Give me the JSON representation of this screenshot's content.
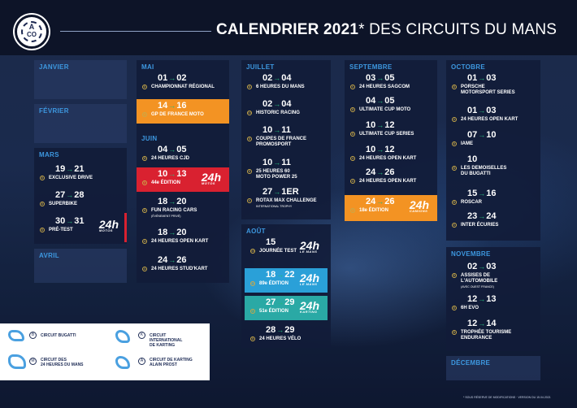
{
  "header": {
    "logo_letters": "A",
    "logo_sub": "CO",
    "title_bold": "CALENDRIER 2021",
    "title_rest": "* DES CIRCUITS DU MANS"
  },
  "months": {
    "janvier": "JANVIER",
    "fevrier": "FÉVRIER",
    "mars": "MARS",
    "avril": "AVRIL",
    "mai": "MAI",
    "juin": "JUIN",
    "juillet": "JUILLET",
    "aout": "AOÛT",
    "septembre": "SEPTEMBRE",
    "octobre": "OCTOBRE",
    "novembre": "NOVEMBRE",
    "decembre": "DÉCEMBRE"
  },
  "events": {
    "mars": [
      {
        "d1": "19",
        "d2": "21",
        "tag": "B",
        "name": "EXCLUSIVE DRIVE"
      },
      {
        "d1": "27",
        "d2": "28",
        "tag": "B",
        "name": "SUPERBIKE"
      },
      {
        "d1": "30",
        "d2": "31",
        "tag": "B",
        "name": "PRÉ-TEST",
        "logo": "24h",
        "logo_sub": "MOTOS"
      }
    ],
    "mai": [
      {
        "d1": "01",
        "d2": "02",
        "tag": "B",
        "name": "CHAMPIONNAT RÉGIONAL"
      },
      {
        "d1": "14",
        "d2": "16",
        "tag": "B",
        "name": "GP DE FRANCE MOTO"
      }
    ],
    "juin": [
      {
        "d1": "04",
        "d2": "05",
        "tag": "B",
        "name": "24 HEURES CJD"
      },
      {
        "d1": "10",
        "d2": "13",
        "tag": "B",
        "name": "44e ÉDITION",
        "logo": "24h",
        "logo_sub": "MOTOS"
      },
      {
        "d1": "18",
        "d2": "20",
        "tag": "B",
        "name": "FUN RACING CARS",
        "sub": "(ÉVÉNEMENT PRIVÉ)"
      },
      {
        "d1": "18",
        "d2": "20",
        "tag": "A",
        "name": "24 HEURES OPEN KART"
      },
      {
        "d1": "24",
        "d2": "26",
        "tag": "A",
        "name": "24 HEURES STUD'KART"
      }
    ],
    "juillet": [
      {
        "d1": "02",
        "d2": "04",
        "tag": "B",
        "name": "6 HEURES DU MANS"
      },
      {
        "d1": "02",
        "d2": "04",
        "tag": "M",
        "name": "HISTORIC RACING"
      },
      {
        "d1": "10",
        "d2": "11",
        "tag": "B",
        "name": "COUPES DE FRANCE",
        "name2": "PROMOSPORT"
      },
      {
        "d1": "10",
        "d2": "11",
        "tag": "B",
        "name": "25 HEURES 60",
        "name2": "MOTO POWER 25"
      },
      {
        "d1": "27",
        "d2": "1ER",
        "tag": "K",
        "name": "ROTAX MAX CHALLENGE",
        "sub": "INTERNATIONAL TROPHY"
      }
    ],
    "aout": [
      {
        "d1": "15",
        "tag": "M",
        "name": "JOURNÉE TEST",
        "logo": "24h",
        "logo_sub": "LE MANS"
      },
      {
        "d1": "18",
        "d2": "22",
        "tag": "M",
        "name": "89e ÉDITION",
        "logo": "24h",
        "logo_sub": "LE MANS"
      },
      {
        "d1": "27",
        "d2": "29",
        "tag": "K",
        "name": "51e ÉDITION",
        "logo": "24h",
        "logo_sub": "KARTING"
      },
      {
        "d1": "28",
        "d2": "29",
        "tag": "B",
        "name": "24 HEURES VÉLO"
      }
    ],
    "septembre": [
      {
        "d1": "03",
        "d2": "05",
        "tag": "K",
        "name": "24 HEURES SAGCOM"
      },
      {
        "d1": "04",
        "d2": "05",
        "tag": "B",
        "name": "ULTIMATE CUP MOTO"
      },
      {
        "d1": "10",
        "d2": "12",
        "tag": "B",
        "name": "ULTIMATE CUP SERIES"
      },
      {
        "d1": "10",
        "d2": "12",
        "tag": "A",
        "name": "24 HEURES OPEN KART"
      },
      {
        "d1": "24",
        "d2": "26",
        "tag": "A",
        "name": "24 HEURES OPEN KART"
      },
      {
        "d1": "24",
        "d2": "26",
        "tag": "B",
        "name": "18e ÉDITION",
        "logo": "24h",
        "logo_sub": "CAMIONS"
      }
    ],
    "octobre": [
      {
        "d1": "01",
        "d2": "03",
        "tag": "B",
        "name": "PORSCHE",
        "name2": "MOTORSPORT SERIES"
      },
      {
        "d1": "01",
        "d2": "03",
        "tag": "A",
        "name": "24 HEURES OPEN KART"
      },
      {
        "d1": "07",
        "d2": "10",
        "tag": "B",
        "name": "IAME"
      },
      {
        "d1": "10",
        "tag": "B",
        "name": "LES DEMOISELLES",
        "name2": "DU BUGATTI"
      },
      {
        "d1": "15",
        "d2": "16",
        "tag": "B",
        "name": "ROSCAR"
      },
      {
        "d1": "23",
        "d2": "24",
        "tag": "K",
        "name": "INTER ÉCURIES"
      }
    ],
    "novembre": [
      {
        "d1": "02",
        "d2": "03",
        "tag": "B",
        "name": "ASSISES DE",
        "name2": "L'AUTOMOBILE",
        "sub": "(AVEC OUEST FRANCE)"
      },
      {
        "d1": "12",
        "d2": "13",
        "tag": "B",
        "name": "6H EVO"
      },
      {
        "d1": "12",
        "d2": "14",
        "tag": "B",
        "name": "TROPHÉE TOURISME",
        "name2": "ENDURANCE"
      }
    ]
  },
  "legend": {
    "b": "CIRCUIT BUGATTI",
    "m1": "CIRCUIT DES",
    "m2": "24 HEURES DU MANS",
    "k1": "CIRCUIT",
    "k2": "INTERNATIONAL",
    "k3": "DE KARTING",
    "a1": "CIRCUIT DE KARTING",
    "a2": "ALAIN PROST"
  },
  "footnote": "* SOUS RÉSERVE DE MODIFICATIONS · VERSION DU 15.04.2021",
  "colors": {
    "accent_blue": "#3d98e0",
    "arrow_green": "#26b87a",
    "orange": "#f39323",
    "red": "#d92130",
    "cyan": "#2aa0d8",
    "teal": "#2aa9a5"
  }
}
